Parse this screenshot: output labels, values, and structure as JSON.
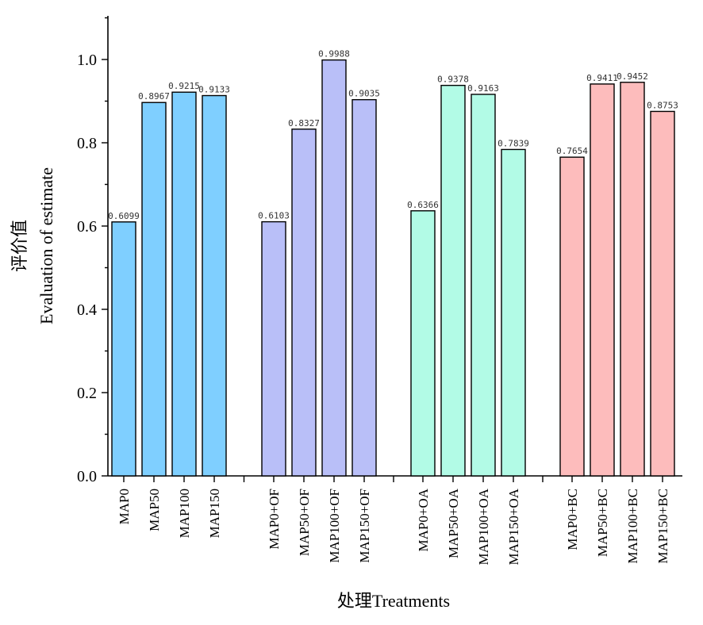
{
  "chart_data": {
    "type": "bar",
    "ylabel_cn": "评价值",
    "ylabel": "Evaluation of estimate",
    "xlabel": "处理Treatments",
    "ylim": [
      0,
      1.1
    ],
    "yticks": [
      "0.0",
      "0.2",
      "0.4",
      "0.6",
      "0.8",
      "1.0"
    ],
    "ytick_values": [
      0,
      0.2,
      0.4,
      0.6,
      0.8,
      1.0
    ],
    "grid": false,
    "groups": [
      {
        "color": "#7fcfff",
        "categories": [
          "MAP0",
          "MAP50",
          "MAP100",
          "MAP150"
        ],
        "values": [
          0.6099,
          0.8967,
          0.9215,
          0.9133
        ],
        "labels": [
          "0.6099",
          "0.8967",
          "0.9215",
          "0.9133"
        ]
      },
      {
        "color": "#b9bff8",
        "categories": [
          "MAP0+OF",
          "MAP50+OF",
          "MAP100+OF",
          "MAP150+OF"
        ],
        "values": [
          0.6103,
          0.8327,
          0.9988,
          0.9035
        ],
        "labels": [
          "0.6103",
          "0.8327",
          "0.9988",
          "0.9035"
        ]
      },
      {
        "color": "#b2fbe6",
        "categories": [
          "MAP0+OA",
          "MAP50+OA",
          "MAP100+OA",
          "MAP150+OA"
        ],
        "values": [
          0.6366,
          0.9378,
          0.9163,
          0.7839
        ],
        "labels": [
          "0.6366",
          "0.9378",
          "0.9163",
          "0.7839"
        ]
      },
      {
        "color": "#fdbcbc",
        "categories": [
          "MAP0+BC",
          "MAP50+BC",
          "MAP100+BC",
          "MAP150+BC"
        ],
        "values": [
          0.7654,
          0.9411,
          0.9452,
          0.8753
        ],
        "labels": [
          "0.7654",
          "0.9411",
          "0.9452",
          "0.8753"
        ]
      }
    ]
  }
}
